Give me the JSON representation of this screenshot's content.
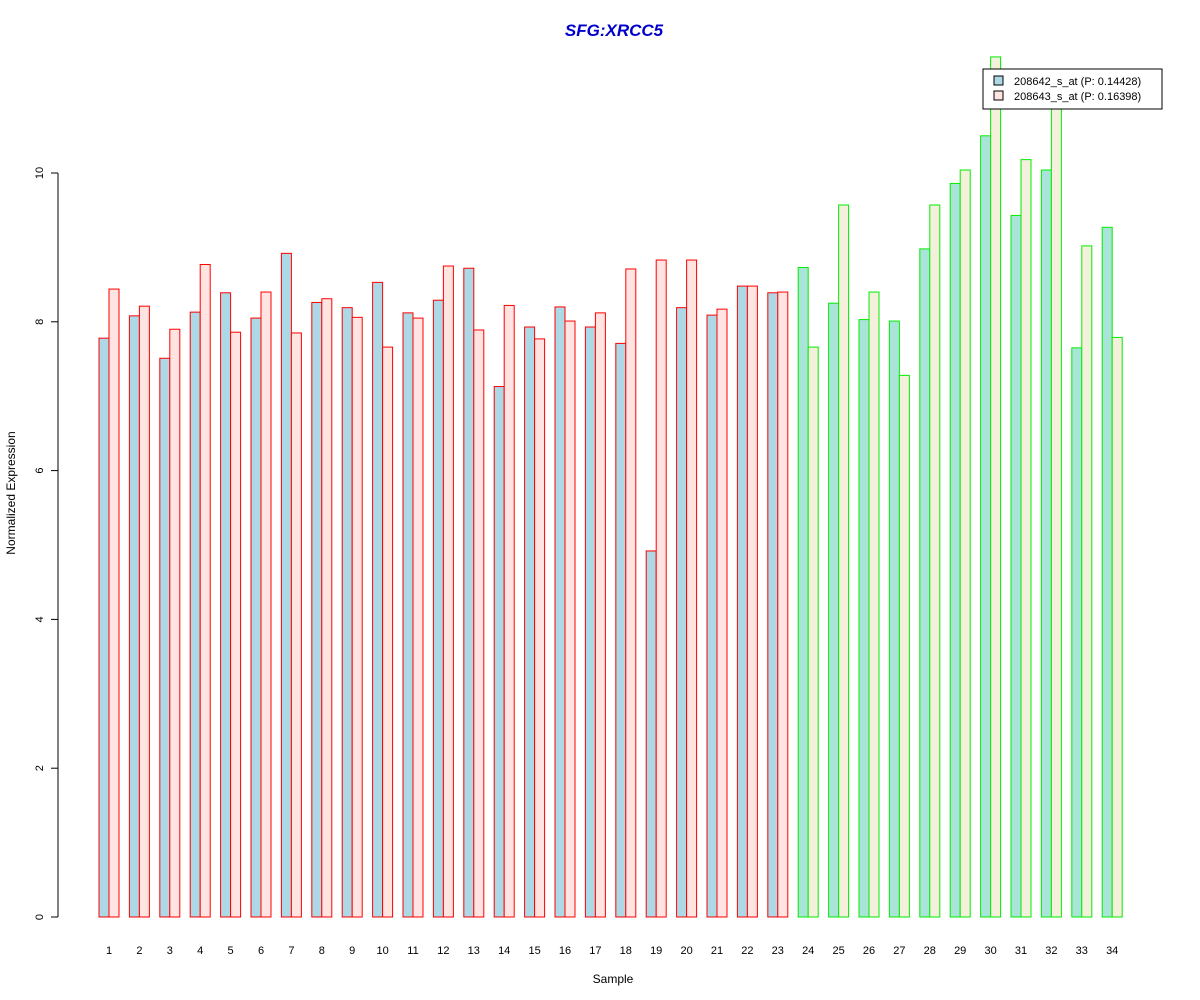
{
  "chart_data": {
    "type": "bar",
    "title": "SFG:XRCC5",
    "xlabel": "Sample",
    "ylabel": "Normalized Expression",
    "ylim": [
      0,
      12
    ],
    "yticks": [
      0,
      2,
      4,
      6,
      8,
      10
    ],
    "grid": false,
    "legend_position": "top-right",
    "categories": [
      "1",
      "2",
      "3",
      "4",
      "5",
      "6",
      "7",
      "8",
      "9",
      "10",
      "11",
      "12",
      "13",
      "14",
      "15",
      "16",
      "17",
      "18",
      "19",
      "20",
      "21",
      "22",
      "23",
      "24",
      "25",
      "26",
      "27",
      "28",
      "29",
      "30",
      "31",
      "32",
      "33",
      "34"
    ],
    "series": [
      {
        "name": "208642_s_at (P: 0.14428)",
        "values": [
          7.78,
          8.08,
          7.51,
          8.13,
          8.39,
          8.05,
          8.92,
          8.26,
          8.19,
          8.53,
          8.12,
          8.29,
          8.72,
          7.13,
          7.93,
          8.2,
          7.93,
          7.71,
          4.92,
          8.19,
          8.09,
          8.48,
          8.39,
          8.73,
          8.25,
          8.03,
          8.01,
          8.98,
          9.86,
          10.5,
          9.43,
          10.04,
          7.65,
          9.27
        ]
      },
      {
        "name": "208643_s_at (P: 0.16398)",
        "values": [
          8.44,
          8.21,
          7.9,
          8.77,
          7.86,
          8.4,
          7.85,
          8.31,
          8.06,
          7.66,
          8.05,
          8.75,
          7.89,
          8.22,
          7.77,
          8.01,
          8.12,
          8.71,
          8.83,
          8.83,
          8.17,
          8.48,
          8.4,
          7.66,
          9.57,
          8.4,
          7.28,
          9.57,
          10.04,
          11.56,
          10.18,
          11.1,
          9.02,
          7.79
        ]
      }
    ],
    "group_split_after_sample": 23,
    "colors": {
      "group1_series1_fill": "#add8e6",
      "group1_series2_fill": "#ffe4e1",
      "group1_border": "#ff0000",
      "group2_series1_fill": "#a8e4d8",
      "group2_series2_fill": "#f5f0dc",
      "group2_border": "#00ee00",
      "title": "#0000cc"
    }
  }
}
